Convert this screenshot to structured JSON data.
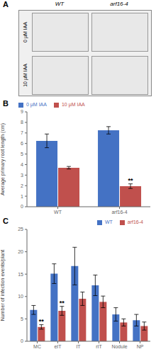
{
  "chart_data": [
    {
      "type": "image_grid",
      "title": "A",
      "categories": [
        "WT",
        "arf16-4"
      ],
      "annotations": [
        "0 µM IAA",
        "10 µM IAA"
      ]
    },
    {
      "type": "bar",
      "title": "B",
      "categories": [
        "WT",
        "arf16-4"
      ],
      "series": [
        {
          "name": "0 μM IAA",
          "color": "#4472C4",
          "values": [
            6.25,
            7.25
          ],
          "errors": [
            0.65,
            0.35
          ]
        },
        {
          "name": "10 μM IAA",
          "color": "#C0504D",
          "values": [
            3.7,
            1.95
          ],
          "errors": [
            0.12,
            0.22
          ]
        }
      ],
      "ylabel": "Average primary root length (cm)",
      "ylim": [
        0,
        9
      ],
      "yticks": [
        0,
        1,
        2,
        3,
        4,
        5,
        6,
        7,
        8,
        9
      ],
      "grid": false,
      "legend": "upper left",
      "annotations": [
        {
          "text": "**",
          "category": "arf16-4",
          "series": "10 μM IAA"
        }
      ]
    },
    {
      "type": "bar",
      "title": "C",
      "categories": [
        "MC",
        "eIT",
        "IT",
        "rIT",
        "Nodule",
        "NP"
      ],
      "series": [
        {
          "name": "WT",
          "color": "#4472C4",
          "values": [
            7.0,
            15.1,
            16.8,
            12.5,
            6.0,
            4.7
          ],
          "errors": [
            1.0,
            2.2,
            4.2,
            2.3,
            1.5,
            1.3
          ]
        },
        {
          "name": "arf16-4",
          "color": "#C0504D",
          "values": [
            3.2,
            6.8,
            9.5,
            8.8,
            4.2,
            3.4
          ],
          "errors": [
            0.5,
            1.0,
            1.5,
            1.3,
            0.8,
            0.9
          ]
        }
      ],
      "ylabel": "Number of infection events/plant",
      "ylim": [
        0,
        25
      ],
      "yticks": [
        0,
        5,
        10,
        15,
        20,
        25
      ],
      "grid": false,
      "legend": "upper right",
      "annotations": [
        {
          "text": "**",
          "category": "MC",
          "series": "arf16-4"
        },
        {
          "text": "**",
          "category": "eIT",
          "series": "arf16-4"
        }
      ]
    }
  ]
}
